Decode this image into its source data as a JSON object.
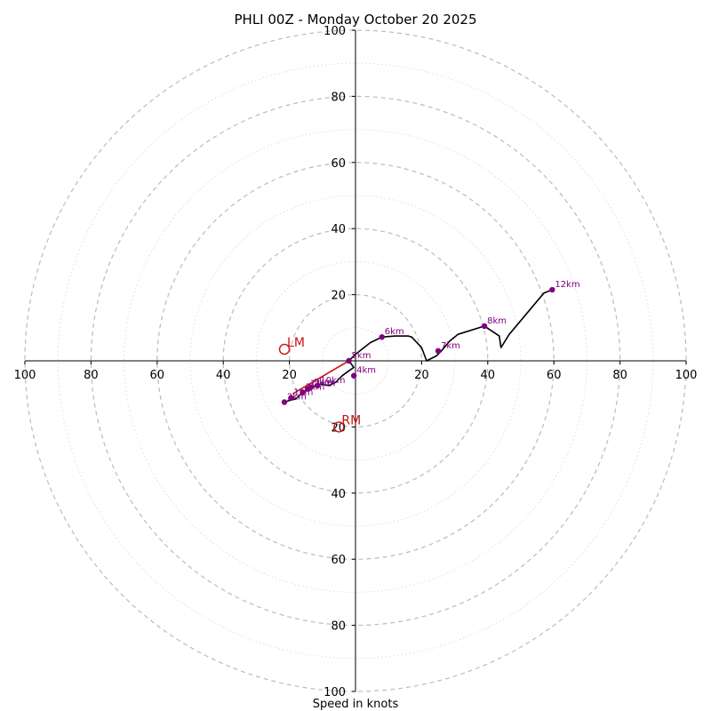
{
  "chart_data": {
    "type": "hodograph",
    "title": "PHLI 00Z - Monday October 20 2025",
    "xlabel": "Speed in knots",
    "max_speed": 100,
    "ring_step": 20,
    "minor_ring_step": 10,
    "tick_values": [
      20,
      40,
      60,
      80,
      100
    ],
    "colors": {
      "hodograph": "#000000",
      "height_marker": "#800080",
      "storm_motion": "#cc1111",
      "major_ring": "#bbbbbb",
      "minor_ring": "#dddddd"
    },
    "hodograph_uv": [
      [
        -21.5,
        -12.5
      ],
      [
        -20,
        -12
      ],
      [
        -18,
        -11.5
      ],
      [
        -16,
        -9.5
      ],
      [
        -13,
        -8
      ],
      [
        -10.5,
        -7
      ],
      [
        -8,
        -7.5
      ],
      [
        -6,
        -6.5
      ],
      [
        -4,
        -4.5
      ],
      [
        -2,
        -3
      ],
      [
        -0.5,
        -2
      ],
      [
        -2,
        0
      ],
      [
        0,
        2
      ],
      [
        4.5,
        5.5
      ],
      [
        8,
        7.2
      ],
      [
        12,
        7.5
      ],
      [
        16,
        7.5
      ],
      [
        17,
        7.2
      ],
      [
        20,
        4
      ],
      [
        21.5,
        0
      ],
      [
        24.5,
        1.5
      ],
      [
        26,
        3
      ],
      [
        28.5,
        6
      ],
      [
        31,
        8
      ],
      [
        39,
        10.5
      ],
      [
        43.5,
        7.5
      ],
      [
        44,
        4
      ],
      [
        46.5,
        8
      ],
      [
        57,
        20.5
      ],
      [
        59.5,
        21.5
      ]
    ],
    "height_markers": [
      {
        "label": "1km",
        "u": -19.5,
        "v": -11.2
      },
      {
        "label": "2km",
        "u": -21.5,
        "v": -12.5
      },
      {
        "label": "3km",
        "u": -16,
        "v": -9.5
      },
      {
        "label": "4km",
        "u": -0.5,
        "v": -4.5
      },
      {
        "label": "5km",
        "u": -2,
        "v": 0
      },
      {
        "label": "6km",
        "u": 8,
        "v": 7.2
      },
      {
        "label": "7km",
        "u": 25,
        "v": 3
      },
      {
        "label": "8km",
        "u": 39,
        "v": 10.5
      },
      {
        "label": "9km",
        "u": -13.5,
        "v": -8
      },
      {
        "label": "10km",
        "u": -11.5,
        "v": -7.5
      },
      {
        "label": "11km",
        "u": -14.5,
        "v": -8.5
      },
      {
        "label": "12km",
        "u": 59.5,
        "v": 21.5
      }
    ],
    "storm_motion_line": [
      [
        -19,
        -10
      ],
      [
        -2,
        0
      ]
    ],
    "storm_motion": [
      {
        "label": "LM",
        "u": -21.5,
        "v": 3.5
      },
      {
        "label": "RM",
        "u": -5,
        "v": -20
      }
    ]
  }
}
